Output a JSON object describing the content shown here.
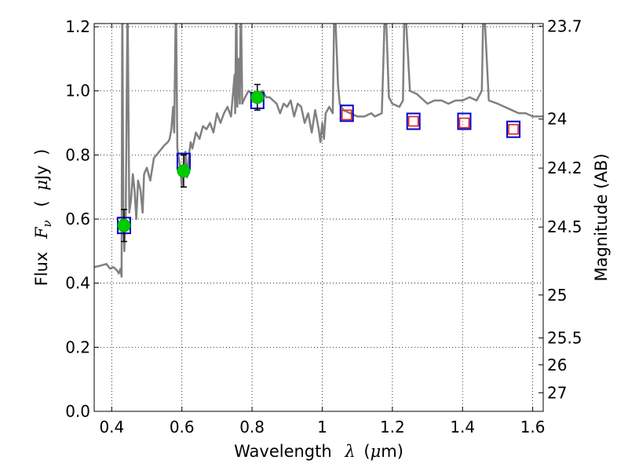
{
  "chart_data": {
    "type": "scatter",
    "title": "",
    "xlabel_parts": [
      "Wavelength",
      "λ",
      "(",
      "μ",
      "m)"
    ],
    "ylabel_parts": [
      "Flux",
      "F",
      "ν",
      "(",
      "μ",
      "Jy",
      ")"
    ],
    "y2label": "Magnitude (AB)",
    "xlim": [
      0.35,
      1.63
    ],
    "ylim": [
      0.0,
      1.21
    ],
    "grid": true,
    "x_ticks": [
      {
        "value": 0.4,
        "label": "0.4"
      },
      {
        "value": 0.6,
        "label": "0.6"
      },
      {
        "value": 0.8,
        "label": "0.8"
      },
      {
        "value": 1.0,
        "label": "1"
      },
      {
        "value": 1.2,
        "label": "1.2"
      },
      {
        "value": 1.4,
        "label": "1.4"
      },
      {
        "value": 1.6,
        "label": "1.6"
      }
    ],
    "y_ticks": [
      {
        "value": 0.0,
        "label": "0.0"
      },
      {
        "value": 0.2,
        "label": "0.2"
      },
      {
        "value": 0.4,
        "label": "0.4"
      },
      {
        "value": 0.6,
        "label": "0.6"
      },
      {
        "value": 0.8,
        "label": "0.8"
      },
      {
        "value": 1.0,
        "label": "1.0"
      },
      {
        "value": 1.2,
        "label": "1.2"
      }
    ],
    "y2_ticks": [
      {
        "label": "23.7",
        "flux": 1.202
      },
      {
        "label": "24",
        "flux": 0.912
      },
      {
        "label": "24.2",
        "flux": 0.759
      },
      {
        "label": "24.5",
        "flux": 0.575
      },
      {
        "label": "25",
        "flux": 0.363
      },
      {
        "label": "25.5",
        "flux": 0.229
      },
      {
        "label": "26",
        "flux": 0.145
      },
      {
        "label": "27",
        "flux": 0.058
      }
    ],
    "series": [
      {
        "kind": "model-spectrum",
        "color": "#808080",
        "points": [
          [
            0.35,
            0.45
          ],
          [
            0.37,
            0.455
          ],
          [
            0.385,
            0.46
          ],
          [
            0.395,
            0.445
          ],
          [
            0.405,
            0.45
          ],
          [
            0.415,
            0.44
          ],
          [
            0.42,
            0.43
          ],
          [
            0.425,
            0.445
          ],
          [
            0.428,
            0.42
          ],
          [
            0.43,
            1.3
          ],
          [
            0.433,
            0.6
          ],
          [
            0.436,
            0.5
          ],
          [
            0.44,
            0.62
          ],
          [
            0.445,
            1.3
          ],
          [
            0.45,
            0.62
          ],
          [
            0.455,
            0.66
          ],
          [
            0.46,
            0.74
          ],
          [
            0.465,
            0.69
          ],
          [
            0.47,
            0.6
          ],
          [
            0.475,
            0.72
          ],
          [
            0.482,
            0.69
          ],
          [
            0.488,
            0.62
          ],
          [
            0.492,
            0.74
          ],
          [
            0.5,
            0.76
          ],
          [
            0.51,
            0.72
          ],
          [
            0.52,
            0.79
          ],
          [
            0.535,
            0.81
          ],
          [
            0.55,
            0.83
          ],
          [
            0.56,
            0.84
          ],
          [
            0.565,
            0.85
          ],
          [
            0.57,
            0.88
          ],
          [
            0.575,
            0.95
          ],
          [
            0.578,
            0.87
          ],
          [
            0.583,
            1.3
          ],
          [
            0.587,
            0.82
          ],
          [
            0.595,
            0.76
          ],
          [
            0.6,
            0.7
          ],
          [
            0.605,
            0.76
          ],
          [
            0.61,
            0.81
          ],
          [
            0.615,
            0.73
          ],
          [
            0.62,
            0.8
          ],
          [
            0.625,
            0.84
          ],
          [
            0.63,
            0.82
          ],
          [
            0.64,
            0.87
          ],
          [
            0.65,
            0.85
          ],
          [
            0.66,
            0.89
          ],
          [
            0.67,
            0.88
          ],
          [
            0.68,
            0.9
          ],
          [
            0.69,
            0.87
          ],
          [
            0.7,
            0.93
          ],
          [
            0.71,
            0.9
          ],
          [
            0.72,
            0.93
          ],
          [
            0.73,
            0.95
          ],
          [
            0.74,
            0.92
          ],
          [
            0.75,
            1.05
          ],
          [
            0.752,
            0.93
          ],
          [
            0.755,
            1.3
          ],
          [
            0.758,
            0.95
          ],
          [
            0.762,
            1.1
          ],
          [
            0.765,
            0.96
          ],
          [
            0.768,
            1.3
          ],
          [
            0.772,
            0.96
          ],
          [
            0.78,
            0.98
          ],
          [
            0.79,
            1.0
          ],
          [
            0.8,
            0.99
          ],
          [
            0.81,
            0.98
          ],
          [
            0.82,
            0.99
          ],
          [
            0.83,
            1.0
          ],
          [
            0.84,
            0.98
          ],
          [
            0.85,
            0.98
          ],
          [
            0.86,
            0.97
          ],
          [
            0.87,
            0.96
          ],
          [
            0.88,
            0.93
          ],
          [
            0.89,
            0.96
          ],
          [
            0.9,
            0.95
          ],
          [
            0.91,
            0.97
          ],
          [
            0.92,
            0.92
          ],
          [
            0.93,
            0.96
          ],
          [
            0.94,
            0.95
          ],
          [
            0.95,
            0.9
          ],
          [
            0.96,
            0.93
          ],
          [
            0.97,
            0.87
          ],
          [
            0.98,
            0.94
          ],
          [
            0.99,
            0.88
          ],
          [
            0.995,
            0.84
          ],
          [
            1.0,
            0.9
          ],
          [
            1.005,
            0.85
          ],
          [
            1.01,
            0.93
          ],
          [
            1.02,
            0.95
          ],
          [
            1.03,
            0.93
          ],
          [
            1.035,
            1.3
          ],
          [
            1.045,
            1.02
          ],
          [
            1.05,
            0.96
          ],
          [
            1.06,
            0.94
          ],
          [
            1.08,
            0.93
          ],
          [
            1.1,
            0.92
          ],
          [
            1.12,
            0.92
          ],
          [
            1.14,
            0.93
          ],
          [
            1.15,
            0.92
          ],
          [
            1.17,
            0.93
          ],
          [
            1.18,
            1.3
          ],
          [
            1.19,
            0.98
          ],
          [
            1.2,
            0.96
          ],
          [
            1.22,
            0.95
          ],
          [
            1.23,
            0.97
          ],
          [
            1.235,
            1.3
          ],
          [
            1.25,
            1.0
          ],
          [
            1.27,
            0.99
          ],
          [
            1.29,
            0.97
          ],
          [
            1.3,
            0.96
          ],
          [
            1.32,
            0.97
          ],
          [
            1.34,
            0.97
          ],
          [
            1.36,
            0.96
          ],
          [
            1.38,
            0.97
          ],
          [
            1.4,
            0.97
          ],
          [
            1.42,
            0.98
          ],
          [
            1.44,
            0.97
          ],
          [
            1.455,
            1.0
          ],
          [
            1.46,
            1.3
          ],
          [
            1.475,
            0.97
          ],
          [
            1.5,
            0.96
          ],
          [
            1.52,
            0.95
          ],
          [
            1.54,
            0.94
          ],
          [
            1.56,
            0.93
          ],
          [
            1.58,
            0.93
          ],
          [
            1.6,
            0.92
          ],
          [
            1.63,
            0.92
          ]
        ]
      },
      {
        "kind": "model-photometry",
        "marker": "open-square",
        "color": "#0000cc",
        "points": [
          [
            0.435,
            0.58
          ],
          [
            0.605,
            0.78
          ],
          [
            0.815,
            0.97
          ],
          [
            1.07,
            0.93
          ],
          [
            1.26,
            0.905
          ],
          [
            1.405,
            0.905
          ],
          [
            1.545,
            0.88
          ]
        ]
      },
      {
        "kind": "observed-photometry",
        "marker": "circle",
        "color": "#00cc00",
        "points": [
          {
            "x": 0.435,
            "y": 0.58,
            "err": 0.05
          },
          {
            "x": 0.605,
            "y": 0.75,
            "err": 0.05
          },
          {
            "x": 0.815,
            "y": 0.98,
            "err": 0.04
          }
        ]
      },
      {
        "kind": "upper-limits",
        "marker": "open-square",
        "color": "#dd2222",
        "points": [
          [
            1.07,
            0.925
          ],
          [
            1.26,
            0.905
          ],
          [
            1.405,
            0.9
          ],
          [
            1.545,
            0.88
          ]
        ]
      }
    ]
  }
}
